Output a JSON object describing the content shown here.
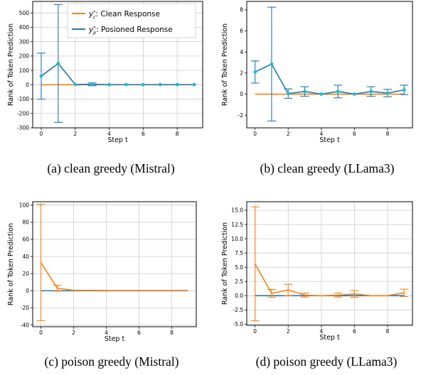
{
  "colors": {
    "clean": "#ff7f0e",
    "poison": "#1f77b4",
    "marker": "#17becf"
  },
  "legend": {
    "clean_label": "y",
    "clean_sub": "c",
    "clean_text": ": Clean Response",
    "poison_label": "y",
    "poison_sub": "p",
    "poison_text": ": Posioned Response"
  },
  "chart_data": [
    {
      "id": "a",
      "type": "line",
      "caption": "(a) clean greedy (Mistral)",
      "xlabel": "Step t",
      "ylabel": "Rank of Token Prediction",
      "xlim": [
        -0.5,
        9.5
      ],
      "ylim": [
        -300,
        580
      ],
      "xticks": [
        0,
        2,
        4,
        6,
        8
      ],
      "yticks": [
        -300,
        -200,
        -100,
        0,
        100,
        200,
        300,
        400,
        500
      ],
      "grid": true,
      "legend_position": "top-right",
      "x": [
        0,
        1,
        2,
        3,
        4,
        5,
        6,
        7,
        8,
        9
      ],
      "series": [
        {
          "role": "clean",
          "values": [
            0,
            0,
            0,
            0,
            0,
            0,
            0,
            0,
            0,
            0
          ],
          "errors": [
            0,
            0,
            0,
            0,
            0,
            0,
            0,
            0,
            0,
            0
          ]
        },
        {
          "role": "poison",
          "values": [
            60,
            148,
            2,
            3,
            1,
            1,
            1,
            1,
            1,
            1
          ],
          "errors": [
            160,
            410,
            2,
            10,
            1,
            1,
            1,
            1,
            1,
            1
          ]
        }
      ]
    },
    {
      "id": "b",
      "type": "line",
      "caption": "(b) clean greedy (LLama3)",
      "xlabel": "Step t",
      "ylabel": "Rank of Token Prediction",
      "xlim": [
        -0.5,
        9.5
      ],
      "ylim": [
        -3.2,
        8.8
      ],
      "xticks": [
        0,
        2,
        4,
        6,
        8
      ],
      "yticks": [
        -2,
        0,
        2,
        4,
        6,
        8
      ],
      "grid": false,
      "x": [
        0,
        1,
        2,
        3,
        4,
        5,
        6,
        7,
        8,
        9
      ],
      "series": [
        {
          "role": "clean",
          "values": [
            0,
            0,
            0,
            0,
            0,
            0,
            0,
            0,
            0,
            0
          ],
          "errors": [
            0,
            0,
            0,
            0,
            0,
            0,
            0,
            0,
            0,
            0
          ]
        },
        {
          "role": "poison",
          "values": [
            2.1,
            2.85,
            0.05,
            0.25,
            0.0,
            0.25,
            0.0,
            0.25,
            0.1,
            0.4
          ],
          "errors": [
            1.05,
            5.4,
            0.45,
            0.45,
            0.05,
            0.6,
            0.05,
            0.45,
            0.35,
            0.45
          ]
        }
      ]
    },
    {
      "id": "c",
      "type": "line",
      "caption": "(c) poison greedy (Mistral)",
      "xlabel": "Step t",
      "ylabel": "Rank of Token Prediction",
      "xlim": [
        -0.5,
        9.5
      ],
      "ylim": [
        -42,
        104
      ],
      "xticks": [
        0,
        2,
        4,
        6,
        8
      ],
      "yticks": [
        -40,
        -20,
        0,
        20,
        40,
        60,
        80,
        100
      ],
      "grid": true,
      "x": [
        0,
        1,
        2,
        3,
        4,
        5,
        6,
        7,
        8,
        9
      ],
      "series": [
        {
          "role": "poison",
          "values": [
            0,
            0,
            0,
            0,
            0,
            0,
            0,
            0,
            0,
            0
          ],
          "errors": [
            0,
            0,
            0,
            0,
            0,
            0,
            0,
            0,
            0,
            0
          ]
        },
        {
          "role": "clean",
          "values": [
            33,
            3,
            0.5,
            0.5,
            0.3,
            0.3,
            0.3,
            0.3,
            0.3,
            0.3
          ],
          "errors": [
            68,
            3.5,
            0.6,
            0.6,
            0.4,
            0.4,
            0.4,
            0.4,
            0.4,
            0.4
          ]
        }
      ]
    },
    {
      "id": "d",
      "type": "line",
      "caption": "(d) poison greedy (LLama3)",
      "xlabel": "Step t",
      "ylabel": "Rank of Token Prediction",
      "xlim": [
        -0.5,
        9.5
      ],
      "ylim": [
        -5.2,
        16.5
      ],
      "xticks": [
        0,
        2,
        4,
        6,
        8
      ],
      "yticks": [
        -5.0,
        -2.5,
        0.0,
        2.5,
        5.0,
        7.5,
        10.0,
        12.5,
        15.0
      ],
      "grid": true,
      "x": [
        0,
        1,
        2,
        3,
        4,
        5,
        6,
        7,
        8,
        9
      ],
      "series": [
        {
          "role": "poison",
          "values": [
            0,
            0,
            0,
            0,
            0,
            0,
            0,
            0,
            0,
            0
          ],
          "errors": [
            0,
            0,
            0,
            0,
            0,
            0,
            0,
            0,
            0,
            0
          ]
        },
        {
          "role": "clean",
          "values": [
            5.6,
            0.4,
            1.0,
            0.1,
            0.0,
            0.1,
            0.3,
            0.0,
            0.0,
            0.5
          ],
          "errors": [
            10.0,
            0.7,
            1.0,
            0.35,
            0.05,
            0.35,
            0.6,
            0.05,
            0.05,
            0.65
          ]
        }
      ]
    }
  ]
}
